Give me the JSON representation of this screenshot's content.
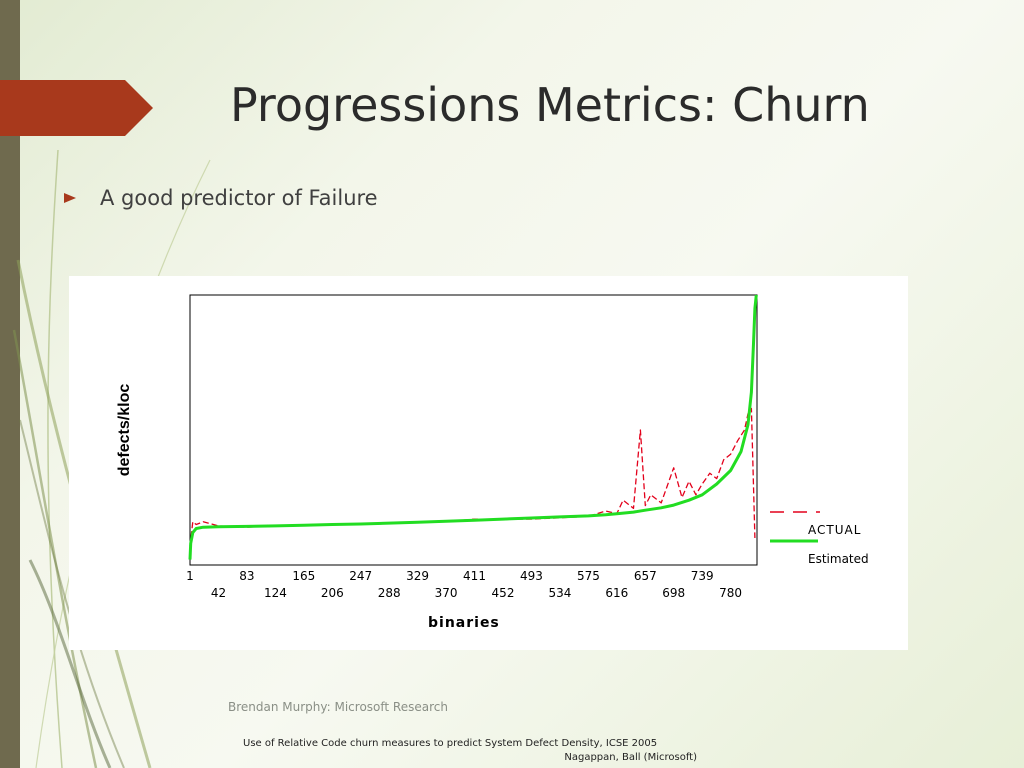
{
  "slide": {
    "title": "Progressions Metrics: Churn",
    "bullet": "A good predictor of Failure",
    "footer": "Brendan Murphy: Microsoft Research",
    "citation_line1": "Use of Relative Code churn measures to predict System Defect Density, ICSE 2005",
    "citation_line2": "Nagappan, Ball (Microsoft)",
    "bullet_icon": "arrow-right-icon",
    "colors": {
      "accent": "#a8391c",
      "sidebar": "#6f6a4e"
    }
  },
  "chart_data": {
    "type": "line",
    "title": "",
    "xlabel": "binaries",
    "ylabel": "defects/kloc",
    "xlim": [
      1,
      818
    ],
    "ylim": [
      0,
      1
    ],
    "grid": false,
    "legend_position": "right",
    "x_ticks_top": [
      "1",
      "83",
      "165",
      "247",
      "329",
      "411",
      "493",
      "575",
      "657",
      "739"
    ],
    "x_ticks_bottom": [
      "42",
      "124",
      "206",
      "288",
      "370",
      "452",
      "534",
      "616",
      "698",
      "780"
    ],
    "tick_positions_top": [
      1,
      83,
      165,
      247,
      329,
      411,
      493,
      575,
      657,
      739
    ],
    "tick_positions_bottom": [
      42,
      124,
      206,
      288,
      370,
      452,
      534,
      616,
      698,
      780
    ],
    "series": [
      {
        "name": "ACTUAL",
        "color": "#e3001b",
        "style": "dashed",
        "x": [
          1,
          5,
          10,
          20,
          42,
          83,
          124,
          165,
          206,
          247,
          288,
          329,
          370,
          411,
          452,
          493,
          534,
          575,
          600,
          616,
          625,
          640,
          650,
          657,
          665,
          680,
          698,
          710,
          720,
          730,
          739,
          750,
          760,
          770,
          780,
          790,
          800,
          805,
          810,
          815
        ],
        "y": [
          0.07,
          0.16,
          0.15,
          0.16,
          0.145,
          0.14,
          0.145,
          0.145,
          0.15,
          0.15,
          0.155,
          0.16,
          0.16,
          0.17,
          0.17,
          0.17,
          0.175,
          0.18,
          0.2,
          0.19,
          0.24,
          0.21,
          0.5,
          0.22,
          0.26,
          0.23,
          0.36,
          0.25,
          0.31,
          0.26,
          0.3,
          0.34,
          0.32,
          0.39,
          0.41,
          0.46,
          0.5,
          0.56,
          0.58,
          0.1
        ]
      },
      {
        "name": "Estimated",
        "color": "#22dd22",
        "style": "solid",
        "x": [
          1,
          2,
          5,
          10,
          20,
          42,
          83,
          124,
          165,
          206,
          247,
          288,
          329,
          370,
          411,
          452,
          493,
          534,
          575,
          600,
          616,
          640,
          657,
          680,
          698,
          720,
          739,
          760,
          780,
          795,
          805,
          810,
          813,
          815,
          817
        ],
        "y": [
          0.02,
          0.08,
          0.12,
          0.135,
          0.14,
          0.142,
          0.143,
          0.145,
          0.147,
          0.15,
          0.152,
          0.155,
          0.158,
          0.162,
          0.166,
          0.17,
          0.174,
          0.178,
          0.182,
          0.186,
          0.19,
          0.196,
          0.203,
          0.212,
          0.222,
          0.24,
          0.26,
          0.3,
          0.35,
          0.42,
          0.52,
          0.64,
          0.82,
          0.95,
          1.0
        ]
      }
    ]
  }
}
